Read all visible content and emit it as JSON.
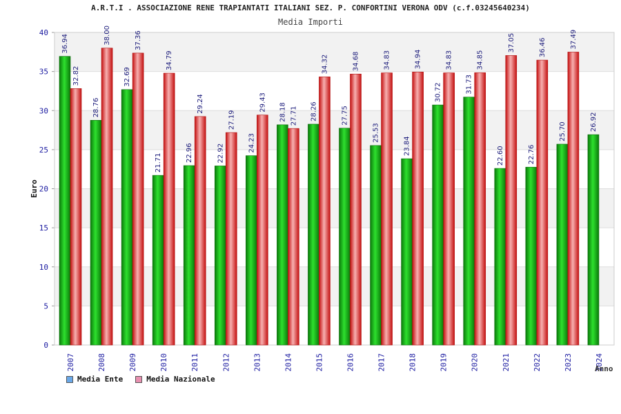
{
  "header": {
    "title": "A.R.T.I . ASSOCIAZIONE RENE TRAPIANTATI ITALIANI SEZ. P. CONFORTINI VERONA ODV (c.f.03245640234)",
    "subtitle": "Media Importi"
  },
  "colors": {
    "ente": "#18b818",
    "nazionale": "#e83a3a",
    "legend_ente": "#6aa8e8",
    "legend_nazionale": "#e890b0",
    "axis_text": "#1a1aa0",
    "label_text": "#1a1a7a"
  },
  "chart_data": {
    "type": "bar",
    "categories": [
      "2007",
      "2008",
      "2009",
      "2010",
      "2011",
      "2012",
      "2013",
      "2014",
      "2015",
      "2016",
      "2017",
      "2018",
      "2019",
      "2020",
      "2021",
      "2022",
      "2023",
      "2024"
    ],
    "series": [
      {
        "name": "Media Ente",
        "values": [
          36.94,
          28.76,
          32.69,
          21.71,
          22.96,
          22.92,
          24.23,
          28.18,
          28.26,
          27.75,
          25.53,
          23.84,
          30.72,
          31.73,
          22.6,
          22.76,
          25.7,
          26.92
        ]
      },
      {
        "name": "Media Nazionale",
        "values": [
          32.82,
          38.0,
          37.36,
          34.79,
          29.24,
          27.19,
          29.43,
          27.71,
          34.32,
          34.68,
          34.83,
          34.94,
          34.83,
          34.85,
          37.05,
          36.46,
          37.49,
          null
        ]
      }
    ],
    "labels": [
      [
        "36.94",
        "28.76",
        "32.69",
        "21.71",
        "22.96",
        "22.92",
        "24.23",
        "28.18",
        "28.26",
        "27.75",
        "25.53",
        "23.84",
        "30.72",
        "31.73",
        "22.60",
        "22.76",
        "25.70",
        "26.92"
      ],
      [
        "32.82",
        "38.00",
        "37.36",
        "34.79",
        "29.24",
        "27.19",
        "29.43",
        "27.71",
        "34.32",
        "34.68",
        "34.83",
        "34.94",
        "34.83",
        "34.85",
        "37.05",
        "36.46",
        "37.49",
        ""
      ]
    ],
    "title": "Media Importi",
    "xlabel": "Anno",
    "ylabel": "Euro",
    "ylim": [
      0,
      40
    ],
    "yticks": [
      0,
      5,
      10,
      15,
      20,
      25,
      30,
      35,
      40
    ],
    "grid": true,
    "legend_position": "bottom-left"
  }
}
